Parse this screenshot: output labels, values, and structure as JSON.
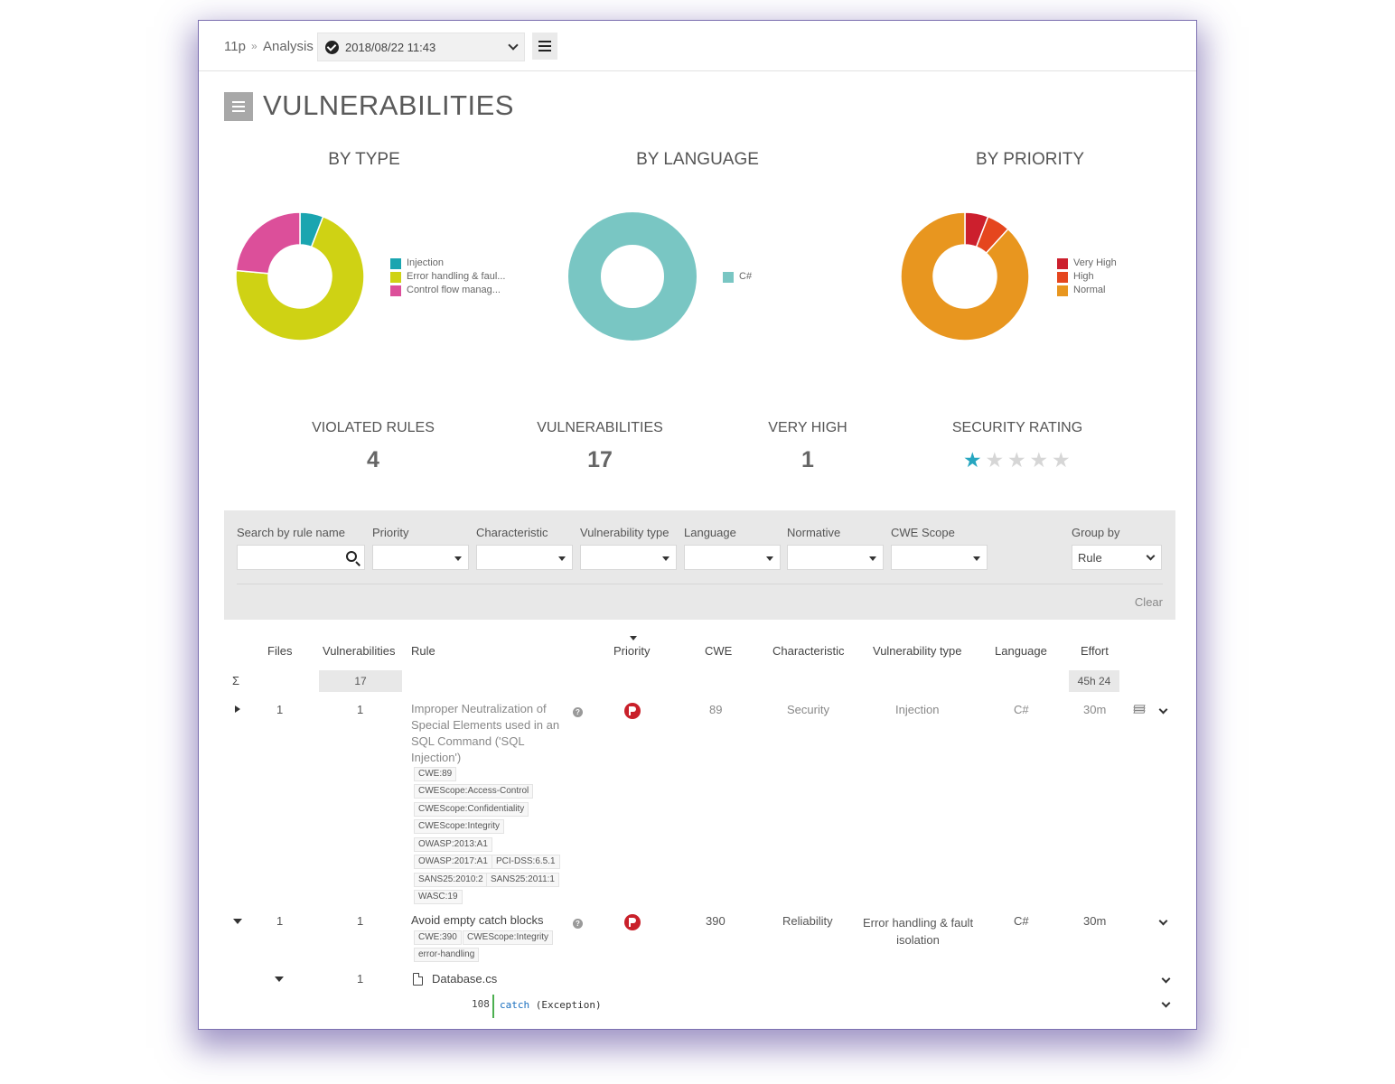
{
  "breadcrumb": {
    "project": "11p",
    "separator": "»",
    "section": "Analysis"
  },
  "analysis_select": {
    "value": "2018/08/22 11:43"
  },
  "page": {
    "title": "VULNERABILITIES"
  },
  "charts": [
    {
      "title": "BY TYPE",
      "type": "pie",
      "slices": [
        {
          "name": "Injection",
          "value": 1,
          "color": "#1aa5b0"
        },
        {
          "name": "Error handling & faul...",
          "value": 12,
          "color": "#cfd214"
        },
        {
          "name": "Control flow manag...",
          "value": 4,
          "color": "#dc4f9a"
        }
      ]
    },
    {
      "title": "BY LANGUAGE",
      "type": "pie",
      "slices": [
        {
          "name": "C#",
          "value": 17,
          "color": "#79c6c3"
        }
      ]
    },
    {
      "title": "BY PRIORITY",
      "type": "pie",
      "slices": [
        {
          "name": "Very High",
          "value": 1,
          "color": "#cc1f2d"
        },
        {
          "name": "High",
          "value": 1,
          "color": "#e5461e"
        },
        {
          "name": "Normal",
          "value": 15,
          "color": "#e8961f"
        }
      ]
    }
  ],
  "stats": {
    "violated_rules_label": "VIOLATED RULES",
    "violated_rules_value": "4",
    "vulnerabilities_label": "VULNERABILITIES",
    "vulnerabilities_value": "17",
    "very_high_label": "VERY HIGH",
    "very_high_value": "1",
    "security_rating_label": "SECURITY RATING",
    "security_rating_stars": 1,
    "security_rating_max": 5,
    "star_on_color": "#26a6c0",
    "star_off_color": "#d6d6d6"
  },
  "filters": {
    "search_label": "Search by rule name",
    "search_value": "",
    "priority_label": "Priority",
    "characteristic_label": "Characteristic",
    "vulnerability_type_label": "Vulnerability type",
    "language_label": "Language",
    "normative_label": "Normative",
    "cwe_scope_label": "CWE Scope",
    "group_by_label": "Group by",
    "group_by_value": "Rule",
    "clear_label": "Clear"
  },
  "table": {
    "headers": {
      "files": "Files",
      "vulnerabilities": "Vulnerabilities",
      "rule": "Rule",
      "priority": "Priority",
      "cwe": "CWE",
      "characteristic": "Characteristic",
      "vulnerability_type": "Vulnerability type",
      "language": "Language",
      "effort": "Effort"
    },
    "summary": {
      "symbol": "Σ",
      "vulnerabilities": "17",
      "effort": "45h 24"
    },
    "rows": [
      {
        "files": "1",
        "vulnerabilities": "1",
        "rule_lines": [
          "Improper Neutralization of",
          "Special Elements used in an",
          "SQL Command ('SQL",
          "Injection')"
        ],
        "tags": [
          "CWE:89",
          "CWEScope:Access-Control",
          "CWEScope:Confidentiality",
          "CWEScope:Integrity",
          "OWASP:2013:A1",
          "OWASP:2017:A1",
          "PCI-DSS:6.5.1",
          "SANS25:2010:2",
          "SANS25:2011:1",
          "WASC:19"
        ],
        "cwe": "89",
        "characteristic": "Security",
        "vulnerability_type": "Injection",
        "language": "C#",
        "effort": "30m"
      },
      {
        "files": "1",
        "vulnerabilities": "1",
        "rule_lines": [
          "Avoid empty catch blocks"
        ],
        "tags": [
          "CWE:390",
          "CWEScope:Integrity",
          "error-handling"
        ],
        "cwe": "390",
        "characteristic": "Reliability",
        "vulnerability_type_lines": [
          "Error handling & fault",
          "isolation"
        ],
        "language": "C#",
        "effort": "30m",
        "file": {
          "vulnerabilities": "1",
          "name": "Database.cs"
        },
        "code": {
          "line": "108",
          "keyword": "catch",
          "rest": " (Exception)"
        }
      }
    ]
  }
}
